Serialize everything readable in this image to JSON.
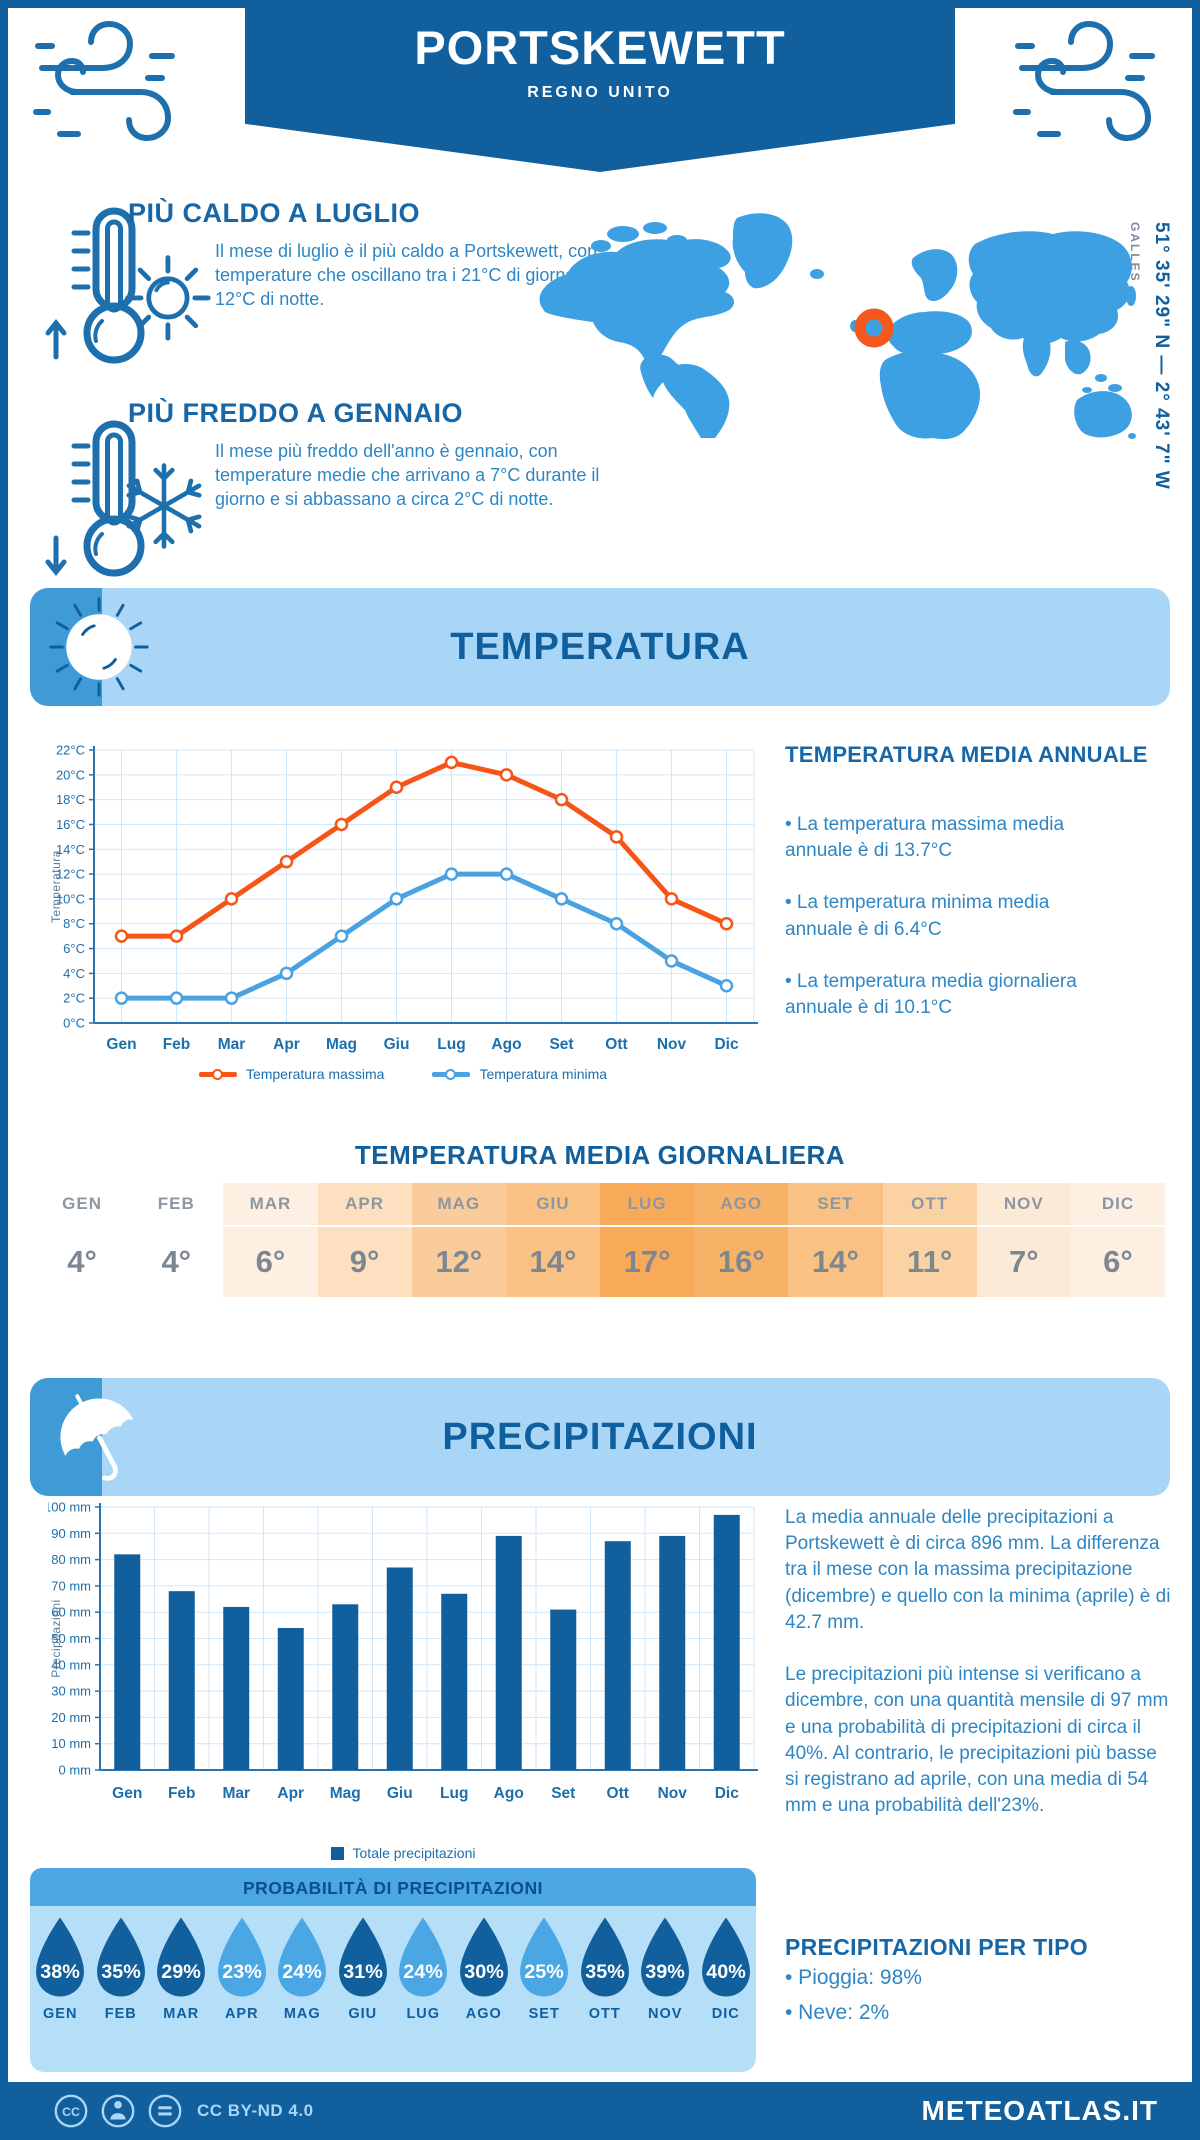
{
  "header": {
    "title": "PORTSKEWETT",
    "subtitle": "REGNO UNITO"
  },
  "highlights": {
    "warm": {
      "title": "PIÙ CALDO A LUGLIO",
      "text": "Il mese di luglio è il più caldo a Portskewett, con temperature che oscillano tra i 21°C di giorno e i 12°C di notte."
    },
    "cold": {
      "title": "PIÙ FREDDO A GENNAIO",
      "text": "Il mese più freddo dell'anno è gennaio, con temperature medie che arrivano a 7°C durante il giorno e si abbassano a circa 2°C di notte."
    }
  },
  "map": {
    "coordinates": "51° 35' 29\" N — 2° 43' 7\" W",
    "region": "GALLES",
    "marker_color": "#f4581c",
    "land_color": "#3da0e2"
  },
  "temperature": {
    "section_title": "TEMPERATURA",
    "annual_title": "TEMPERATURA MEDIA ANNUALE",
    "annual_bullets": [
      "• La temperatura massima media annuale è di 13.7°C",
      "• La temperatura minima media annuale è di 6.4°C",
      "• La temperatura media giornaliera annuale è di 10.1°C"
    ],
    "daily_title": "TEMPERATURA MEDIA GIORNALIERA",
    "months": [
      "GEN",
      "FEB",
      "MAR",
      "APR",
      "MAG",
      "GIU",
      "LUG",
      "AGO",
      "SET",
      "OTT",
      "NOV",
      "DIC"
    ],
    "daily_values": [
      "4°",
      "4°",
      "6°",
      "9°",
      "12°",
      "14°",
      "17°",
      "16°",
      "14°",
      "11°",
      "7°",
      "6°"
    ],
    "cell_colors": [
      "#ffffff",
      "#ffffff",
      "#fdf0e2",
      "#fce0c0",
      "#facc9b",
      "#f9c183",
      "#f8aa58",
      "#f8b268",
      "#f9c183",
      "#fbd2a4",
      "#fce9d6",
      "#fdf0e2"
    ]
  },
  "precipitation": {
    "section_title": "PRECIPITAZIONI",
    "paragraphs": [
      "La media annuale delle precipitazioni a Portskewett è di circa 896 mm. La differenza tra il mese con la massima precipitazione (dicembre) e quello con la minima (aprile) è di 42.7 mm.",
      "Le precipitazioni più intense si verificano a dicembre, con una quantità mensile di 97 mm e una probabilità di precipitazioni di circa il 40%. Al contrario, le precipitazioni più basse si registrano ad aprile, con una media di 54 mm e una probabilità dell'23%."
    ],
    "prob_title": "PROBABILITÀ DI PRECIPITAZIONI",
    "probability": [
      {
        "month": "GEN",
        "value": "38%",
        "shade": "dark"
      },
      {
        "month": "FEB",
        "value": "35%",
        "shade": "dark"
      },
      {
        "month": "MAR",
        "value": "29%",
        "shade": "dark"
      },
      {
        "month": "APR",
        "value": "23%",
        "shade": "light"
      },
      {
        "month": "MAG",
        "value": "24%",
        "shade": "light"
      },
      {
        "month": "GIU",
        "value": "31%",
        "shade": "dark"
      },
      {
        "month": "LUG",
        "value": "24%",
        "shade": "light"
      },
      {
        "month": "AGO",
        "value": "30%",
        "shade": "dark"
      },
      {
        "month": "SET",
        "value": "25%",
        "shade": "light"
      },
      {
        "month": "OTT",
        "value": "35%",
        "shade": "dark"
      },
      {
        "month": "NOV",
        "value": "39%",
        "shade": "dark"
      },
      {
        "month": "DIC",
        "value": "40%",
        "shade": "dark"
      }
    ],
    "shade_colors": {
      "dark": "#115f9c",
      "light": "#4aa7e3"
    },
    "type_title": "PRECIPITAZIONI PER TIPO",
    "types": [
      "• Pioggia: 98%",
      "• Neve: 2%"
    ]
  },
  "footer": {
    "license": "CC BY-ND 4.0",
    "brand": "METEOATLAS.IT"
  },
  "chart_data": [
    {
      "type": "line",
      "categories": [
        "Gen",
        "Feb",
        "Mar",
        "Apr",
        "Mag",
        "Giu",
        "Lug",
        "Ago",
        "Set",
        "Ott",
        "Nov",
        "Dic"
      ],
      "series": [
        {
          "name": "Temperatura massima",
          "color": "#f75418",
          "values": [
            7,
            7,
            10,
            13,
            16,
            19,
            21,
            20,
            18,
            15,
            10,
            8
          ]
        },
        {
          "name": "Temperatura minima",
          "color": "#4aa3e0",
          "values": [
            2,
            2,
            2,
            4,
            7,
            10,
            12,
            12,
            10,
            8,
            5,
            3
          ]
        }
      ],
      "xlabel": "",
      "ylabel": "Temperatura",
      "ylim": [
        0,
        22
      ],
      "ystep": 2,
      "yunit": "°C",
      "grid": true,
      "legend_position": "bottom"
    },
    {
      "type": "bar",
      "categories": [
        "Gen",
        "Feb",
        "Mar",
        "Apr",
        "Mag",
        "Giu",
        "Lug",
        "Ago",
        "Set",
        "Ott",
        "Nov",
        "Dic"
      ],
      "series": [
        {
          "name": "Totale precipitazioni",
          "color": "#115f9c",
          "values": [
            82,
            68,
            62,
            54,
            63,
            77,
            67,
            89,
            61,
            87,
            89,
            97
          ]
        }
      ],
      "xlabel": "",
      "ylabel": "Precipitazioni",
      "ylim": [
        0,
        100
      ],
      "ystep": 10,
      "yunit": " mm",
      "grid": true,
      "legend_position": "bottom"
    }
  ]
}
